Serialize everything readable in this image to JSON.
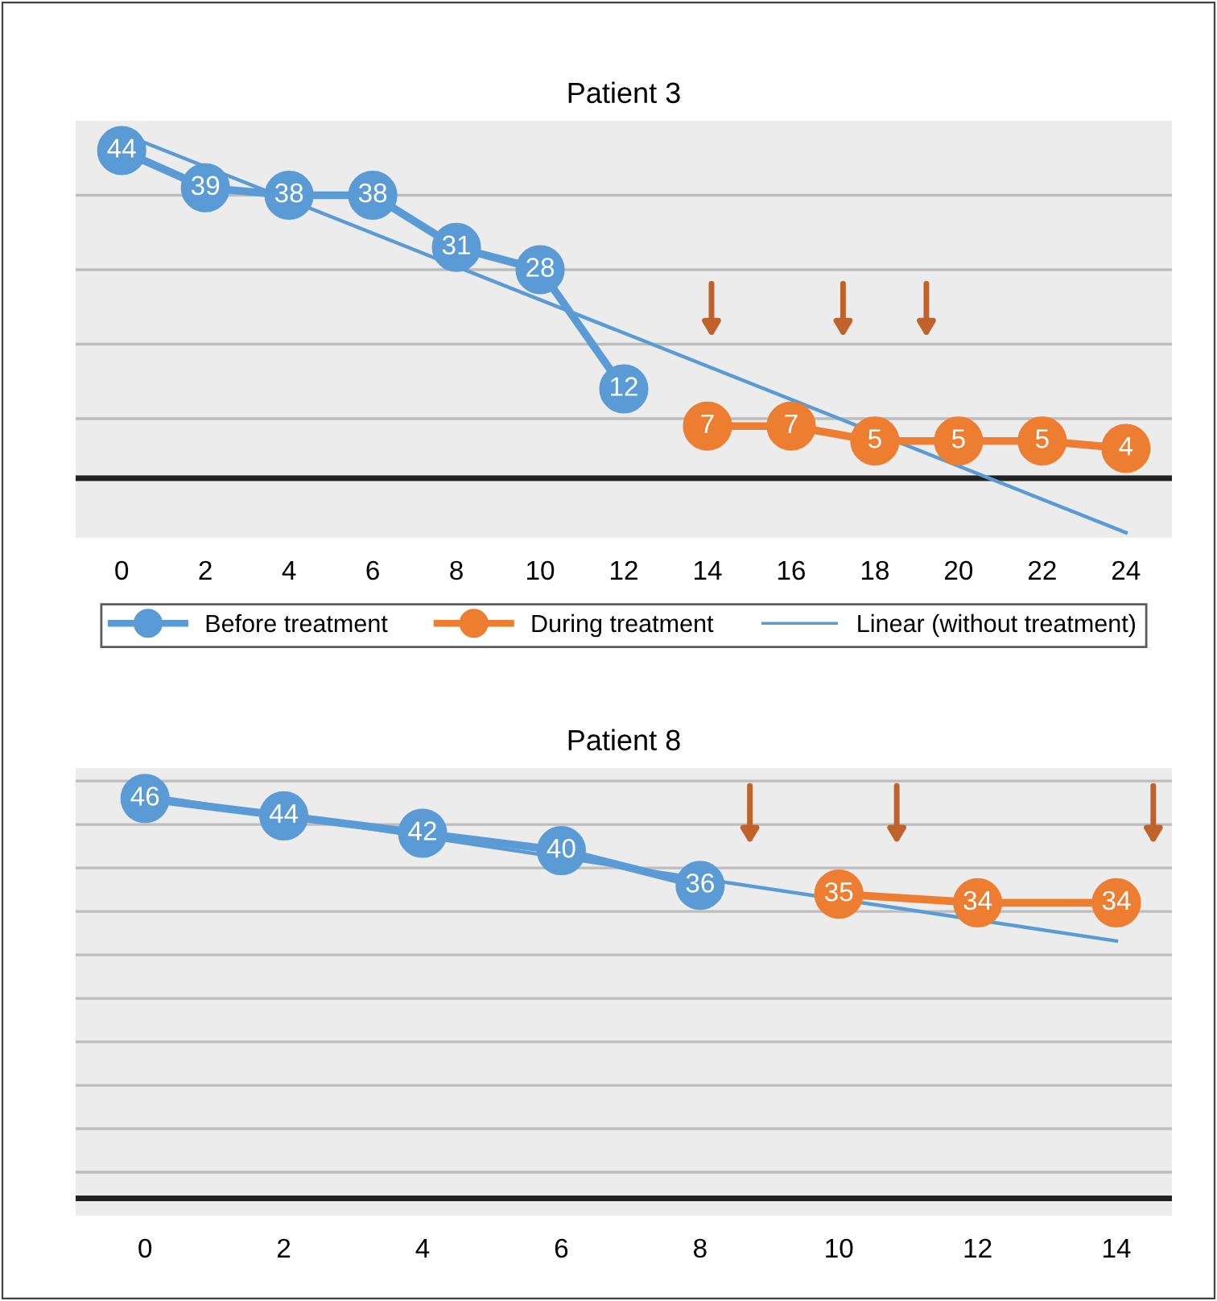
{
  "chart_data": [
    {
      "type": "line",
      "title": "Patient 3",
      "xlim": [
        -1.1,
        25.1
      ],
      "xticks": [
        0,
        2,
        4,
        6,
        8,
        10,
        12,
        14,
        16,
        18,
        20,
        22,
        24
      ],
      "ylim": [
        -8,
        48
      ],
      "yticks": [
        {
          "value": 8,
          "label": null
        },
        {
          "value": 18,
          "label": null
        },
        {
          "value": 28,
          "label": null
        },
        {
          "value": 38,
          "label": null
        }
      ],
      "tick_labels": "x",
      "grid": "y",
      "legend": "bottom",
      "ref_lines": [
        {
          "axis": "y",
          "value": 0,
          "color": "#222222"
        }
      ],
      "series": [
        {
          "name": "Before treatment",
          "color": "#5b9bd5",
          "marker": "circle",
          "x": [
            0,
            2,
            4,
            6,
            8,
            10,
            12
          ],
          "values": [
            44,
            39,
            38,
            38,
            31,
            28,
            12
          ],
          "value_labels": [
            "44",
            "39",
            "38",
            "38",
            "31",
            "28",
            "12"
          ]
        },
        {
          "name": "During treatment",
          "color": "#ed7d31",
          "marker": "circle",
          "x": [
            14,
            16,
            18,
            20,
            22,
            24
          ],
          "values": [
            7,
            7,
            5,
            5,
            5,
            4
          ],
          "value_labels": [
            "7",
            "7",
            "5",
            "5",
            "5",
            "4"
          ]
        },
        {
          "name": "Linear (without treatment)",
          "color": "#5b9bd5",
          "marker": "none",
          "x": [
            0,
            24
          ],
          "values": [
            46.3,
            -7.3
          ]
        }
      ]
    },
    {
      "type": "line",
      "title": "Patient 8",
      "xlim": [
        -1.0,
        14.8
      ],
      "xticks": [
        0,
        2,
        4,
        6,
        8,
        10,
        12,
        14
      ],
      "ylim": [
        -2,
        49.5
      ],
      "yticks": [
        {
          "value": 3,
          "label": null
        },
        {
          "value": 8,
          "label": null
        },
        {
          "value": 13,
          "label": null
        },
        {
          "value": 18,
          "label": null
        },
        {
          "value": 23,
          "label": null
        },
        {
          "value": 28,
          "label": null
        },
        {
          "value": 33,
          "label": null
        },
        {
          "value": 38,
          "label": null
        },
        {
          "value": 43,
          "label": null
        },
        {
          "value": 48,
          "label": null
        }
      ],
      "tick_labels": "x",
      "grid": "y",
      "ref_lines": [
        {
          "axis": "y",
          "value": 0,
          "color": "#222222"
        }
      ],
      "series": [
        {
          "color": "#5b9bd5",
          "marker": "circle",
          "x": [
            0,
            2,
            4,
            6,
            8
          ],
          "values": [
            46,
            44,
            42,
            40,
            36
          ],
          "value_labels": [
            "46",
            "44",
            "42",
            "40",
            "36"
          ]
        },
        {
          "color": "#ed7d31",
          "marker": "circle",
          "x": [
            10,
            12,
            14
          ],
          "values": [
            35,
            34,
            34
          ],
          "value_labels": [
            "35",
            "34",
            "34"
          ]
        },
        {
          "color": "#5b9bd5",
          "marker": "none",
          "x": [
            0,
            14
          ],
          "values": [
            46.4,
            29.6
          ]
        }
      ]
    }
  ]
}
